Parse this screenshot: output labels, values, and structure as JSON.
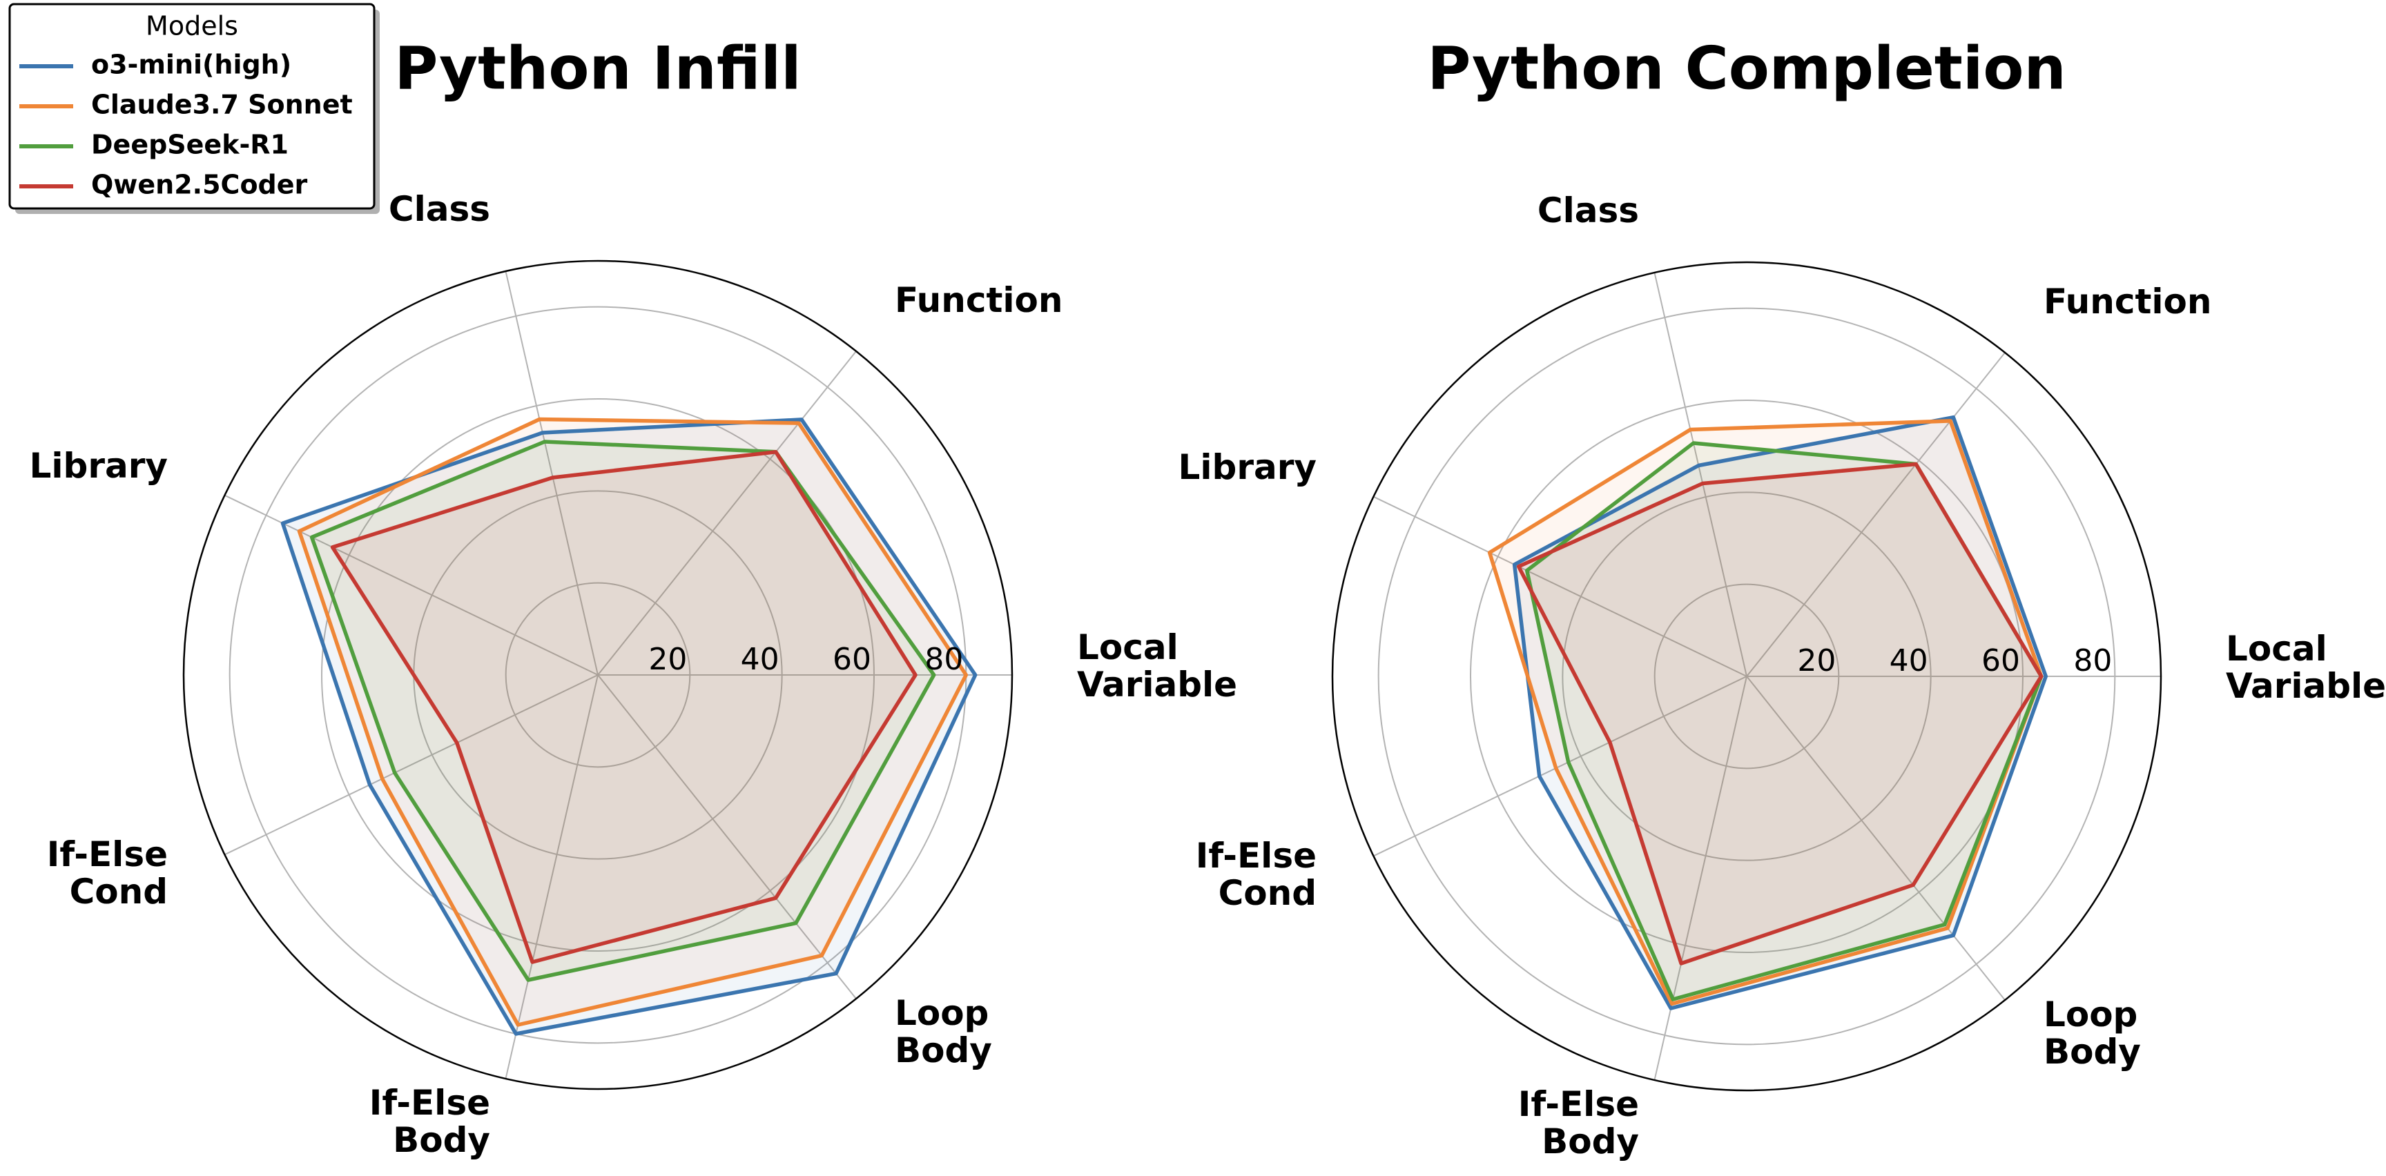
{
  "legend": {
    "title": "Models",
    "placement": "top-left"
  },
  "chart_data": [
    {
      "type": "radar",
      "title": "Python Infill",
      "axes": [
        [
          "Local",
          "Variable"
        ],
        [
          "Function"
        ],
        [
          "Class"
        ],
        [
          "Library"
        ],
        [
          "If-Else",
          "Cond"
        ],
        [
          "If-Else",
          "Body"
        ],
        [
          "Loop",
          "Body"
        ]
      ],
      "rlim": [
        0,
        90
      ],
      "rticks": [
        20,
        40,
        60,
        80
      ],
      "rtick_labels": [
        "20",
        "40",
        "60",
        "80"
      ],
      "series": [
        {
          "name": "o3-mini(high)",
          "color": "#3b75af",
          "values": [
            82,
            71,
            54,
            76,
            55,
            80,
            83
          ]
        },
        {
          "name": "Claude3.7 Sonnet",
          "color": "#ef8636",
          "values": [
            80,
            70,
            57,
            72,
            52,
            78,
            78
          ]
        },
        {
          "name": "DeepSeek-R1",
          "color": "#519e3e",
          "values": [
            73,
            62,
            52,
            69,
            49,
            68,
            69
          ]
        },
        {
          "name": "Qwen2.5Coder",
          "color": "#c53a32",
          "values": [
            69,
            62,
            44,
            64,
            34,
            64,
            62
          ]
        }
      ]
    },
    {
      "type": "radar",
      "title": "Python Completion",
      "axes": [
        [
          "Local",
          "Variable"
        ],
        [
          "Function"
        ],
        [
          "Class"
        ],
        [
          "Library"
        ],
        [
          "If-Else",
          "Cond"
        ],
        [
          "If-Else",
          "Body"
        ],
        [
          "Loop",
          "Body"
        ]
      ],
      "rlim": [
        0,
        90
      ],
      "rticks": [
        20,
        40,
        60,
        80
      ],
      "rtick_labels": [
        "20",
        "40",
        "60",
        "80"
      ],
      "series": [
        {
          "name": "o3-mini(high)",
          "color": "#3b75af",
          "values": [
            65,
            72,
            47,
            56,
            50,
            74,
            72
          ]
        },
        {
          "name": "Claude3.7 Sonnet",
          "color": "#ef8636",
          "values": [
            64,
            71,
            55,
            62,
            46,
            73,
            70
          ]
        },
        {
          "name": "DeepSeek-R1",
          "color": "#519e3e",
          "values": [
            64,
            59,
            52,
            53,
            43,
            72,
            69
          ]
        },
        {
          "name": "Qwen2.5Coder",
          "color": "#c53a32",
          "values": [
            64,
            59,
            43,
            55,
            33,
            64,
            58
          ]
        }
      ]
    }
  ]
}
